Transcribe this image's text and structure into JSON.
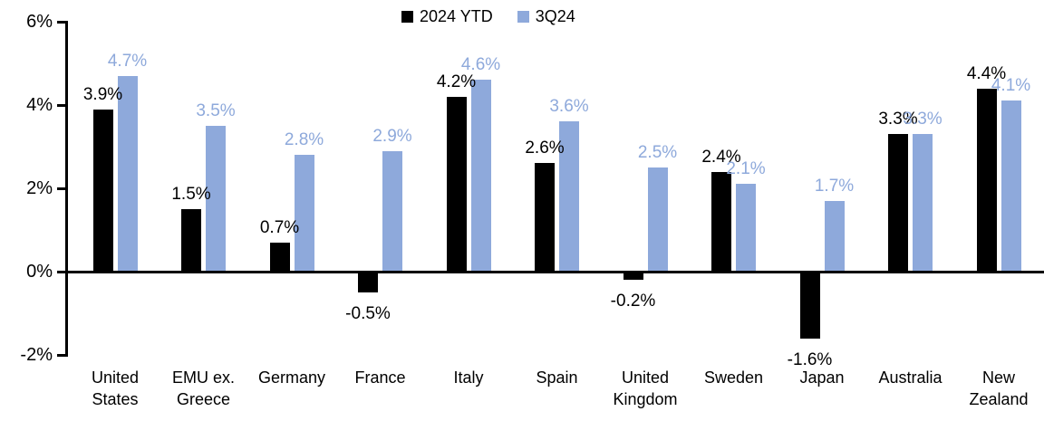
{
  "chart_data": {
    "type": "bar",
    "title": "",
    "categories": [
      "United States",
      "EMU ex. Greece",
      "Germany",
      "France",
      "Italy",
      "Spain",
      "United Kingdom",
      "Sweden",
      "Japan",
      "Australia",
      "New Zealand"
    ],
    "series": [
      {
        "name": "2024 YTD",
        "color": "#000000",
        "values": [
          3.9,
          1.5,
          0.7,
          -0.5,
          4.2,
          2.6,
          -0.2,
          2.4,
          -1.6,
          3.3,
          4.4
        ]
      },
      {
        "name": "3Q24",
        "color": "#8EA9DB",
        "values": [
          4.7,
          3.5,
          2.8,
          2.9,
          4.6,
          3.6,
          2.5,
          2.1,
          1.7,
          3.3,
          4.1
        ]
      }
    ],
    "data_labels": {
      "series_0": [
        "3.9%",
        "1.5%",
        "0.7%",
        "-0.5%",
        "4.2%",
        "2.6%",
        "-0.2%",
        "2.4%",
        "-1.6%",
        "3.3%",
        "4.4%"
      ],
      "series_1": [
        "4.7%",
        "3.5%",
        "2.8%",
        "2.9%",
        "4.6%",
        "3.6%",
        "2.5%",
        "2.1%",
        "1.7%",
        "3.3%",
        "4.1%"
      ]
    },
    "y_axis": {
      "ticks": [
        "6%",
        "4%",
        "2%",
        "0%",
        "-2%"
      ],
      "tick_values": [
        6,
        4,
        2,
        0,
        -2
      ],
      "min": -2,
      "max": 6,
      "unit": "%"
    },
    "legend_position": "top-center",
    "grid": false,
    "colors": {
      "series_2024_ytd": "#000000",
      "series_3q24": "#8EA9DB",
      "background": "#ffffff",
      "axis": "#000000"
    }
  }
}
